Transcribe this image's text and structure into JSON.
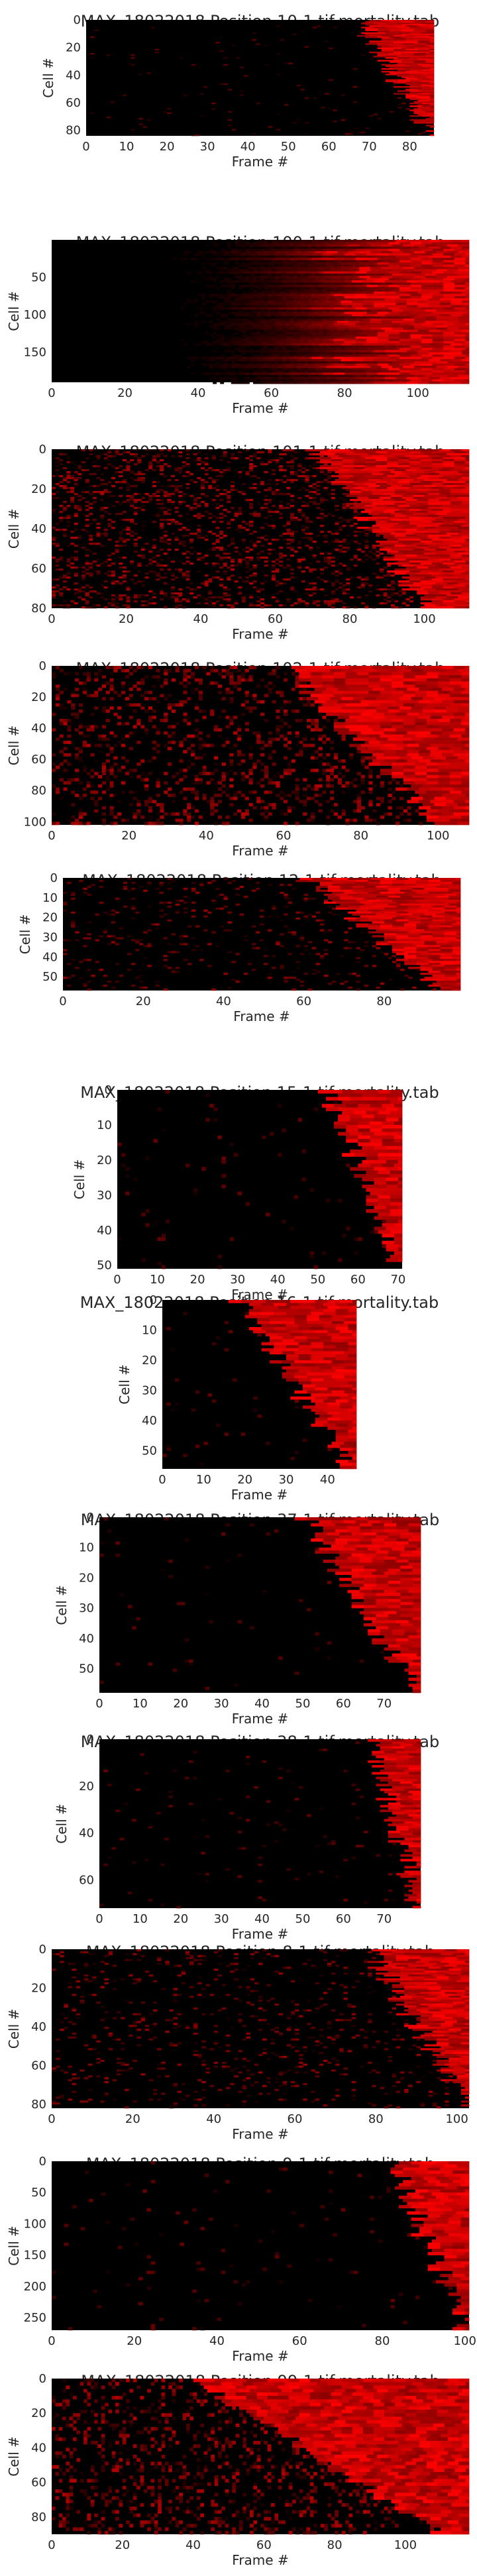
{
  "chart_data": [
    {
      "type": "heatmap",
      "title": "MAX_18022018 Position 10-1.tif.mortality.tab",
      "xlabel": "Frame #",
      "ylabel": "Cell #",
      "xlim": [
        0,
        86
      ],
      "ylim": [
        0,
        84
      ],
      "xticks": [
        0,
        10,
        20,
        30,
        40,
        50,
        60,
        70,
        80
      ],
      "yticks": [
        0,
        20,
        40,
        60,
        80
      ],
      "pattern": "late",
      "onset_range": [
        67,
        85
      ]
    },
    {
      "type": "heatmap",
      "title": "MAX_18022018 Position 100-1.tif.mortality.tab",
      "xlabel": "Frame #",
      "ylabel": "Cell #",
      "xlim": [
        0,
        114
      ],
      "ylim": [
        0,
        190
      ],
      "xticks": [
        0,
        20,
        40,
        60,
        80,
        100
      ],
      "yticks": [
        50,
        100,
        150
      ],
      "pattern": "gradient",
      "onset_range": [
        70,
        100
      ]
    },
    {
      "type": "heatmap",
      "title": "MAX_18022018 Position 101-1.tif.mortality.tab",
      "xlabel": "Frame #",
      "ylabel": "Cell #",
      "xlim": [
        0,
        112
      ],
      "ylim": [
        0,
        80
      ],
      "xticks": [
        0,
        20,
        40,
        60,
        80,
        100
      ],
      "yticks": [
        0,
        20,
        40,
        60,
        80
      ],
      "pattern": "noisy",
      "onset_range": [
        70,
        100
      ]
    },
    {
      "type": "heatmap",
      "title": "MAX_18022018 Position 102-1.tif.mortality.tab",
      "xlabel": "Frame #",
      "ylabel": "Cell #",
      "xlim": [
        0,
        108
      ],
      "ylim": [
        0,
        102
      ],
      "xticks": [
        0,
        20,
        40,
        60,
        80,
        100
      ],
      "yticks": [
        0,
        20,
        40,
        60,
        80,
        100
      ],
      "pattern": "noisy",
      "onset_range": [
        60,
        100
      ]
    },
    {
      "type": "heatmap",
      "title": "MAX_18022018 Position 12-1.tif.mortality.tab",
      "xlabel": "Frame #",
      "ylabel": "Cell #",
      "xlim": [
        0,
        99
      ],
      "ylim": [
        0,
        57
      ],
      "xticks": [
        0,
        20,
        40,
        60,
        80
      ],
      "yticks": [
        0,
        10,
        20,
        30,
        40,
        50
      ],
      "pattern": "sparse",
      "onset_range": [
        60,
        95
      ]
    },
    {
      "type": "heatmap",
      "title": "MAX_18022018 Position 15-1.tif.mortality.tab",
      "xlabel": "Frame #",
      "ylabel": "Cell #",
      "xlim": [
        0,
        71
      ],
      "ylim": [
        0,
        51
      ],
      "xticks": [
        0,
        10,
        20,
        30,
        40,
        50,
        60,
        70
      ],
      "yticks": [
        0,
        10,
        20,
        30,
        40,
        50
      ],
      "pattern": "late",
      "onset_range": [
        52,
        70
      ]
    },
    {
      "type": "heatmap",
      "title": "MAX_18022018 Position 16-1.tif.mortality.tab",
      "xlabel": "Frame #",
      "ylabel": "Cell #",
      "xlim": [
        0,
        47
      ],
      "ylim": [
        0,
        56
      ],
      "xticks": [
        0,
        10,
        20,
        30,
        40
      ],
      "yticks": [
        0,
        10,
        20,
        30,
        40,
        50
      ],
      "pattern": "late",
      "onset_range": [
        18,
        45
      ]
    },
    {
      "type": "heatmap",
      "title": "MAX_18022018 Position 37-1.tif.mortality.tab",
      "xlabel": "Frame #",
      "ylabel": "Cell #",
      "xlim": [
        0,
        79
      ],
      "ylim": [
        0,
        58
      ],
      "xticks": [
        0,
        10,
        20,
        30,
        40,
        50,
        60,
        70
      ],
      "yticks": [
        0,
        10,
        20,
        30,
        40,
        50
      ],
      "pattern": "late",
      "onset_range": [
        50,
        78
      ]
    },
    {
      "type": "heatmap",
      "title": "MAX_18022018 Position 38-1.tif.mortality.tab",
      "xlabel": "Frame #",
      "ylabel": "Cell #",
      "xlim": [
        0,
        79
      ],
      "ylim": [
        0,
        72
      ],
      "xticks": [
        0,
        10,
        20,
        30,
        40,
        50,
        60,
        70
      ],
      "yticks": [
        0,
        20,
        40,
        60
      ],
      "pattern": "late",
      "onset_range": [
        66,
        78
      ]
    },
    {
      "type": "heatmap",
      "title": "MAX_18022018 Position 8-1.tif.mortality.tab",
      "xlabel": "Frame #",
      "ylabel": "Cell #",
      "xlim": [
        0,
        103
      ],
      "ylim": [
        0,
        82
      ],
      "xticks": [
        0,
        20,
        40,
        60,
        80,
        100
      ],
      "yticks": [
        0,
        20,
        40,
        60,
        80
      ],
      "pattern": "sparse",
      "onset_range": [
        78,
        102
      ]
    },
    {
      "type": "heatmap",
      "title": "MAX_18022018 Position 9-1.tif.mortality.tab",
      "xlabel": "Frame #",
      "ylabel": "Cell #",
      "xlim": [
        0,
        101
      ],
      "ylim": [
        0,
        270
      ],
      "xticks": [
        0,
        20,
        40,
        60,
        80,
        100
      ],
      "yticks": [
        0,
        50,
        100,
        150,
        200,
        250
      ],
      "pattern": "late",
      "onset_range": [
        82,
        100
      ]
    },
    {
      "type": "heatmap",
      "title": "MAX_18022018 Position 99-1.tif.mortality.tab",
      "xlabel": "Frame #",
      "ylabel": "Cell #",
      "xlim": [
        0,
        118
      ],
      "ylim": [
        0,
        90
      ],
      "xticks": [
        0,
        20,
        40,
        60,
        80,
        100
      ],
      "yticks": [
        0,
        20,
        40,
        60,
        80
      ],
      "pattern": "noisy",
      "onset_range": [
        40,
        110
      ]
    }
  ],
  "colors": {
    "background": "#000000",
    "high": "#ff0000",
    "text": "#262626"
  }
}
